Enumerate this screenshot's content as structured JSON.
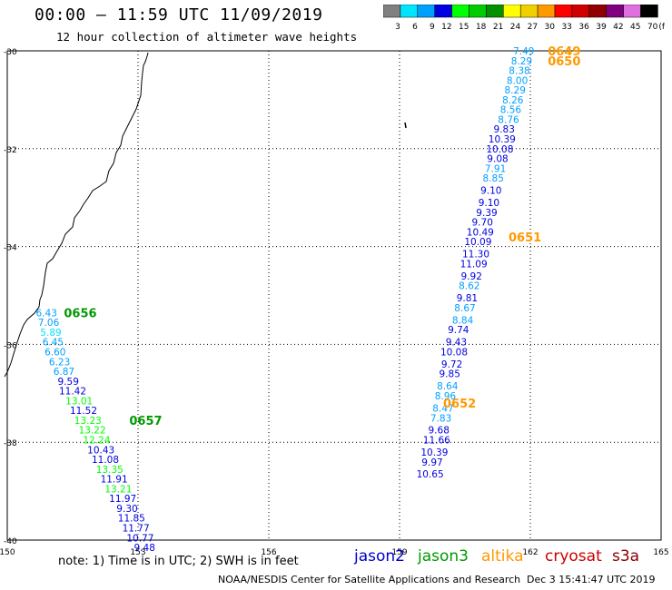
{
  "header": {
    "title": "00:00 – 11:59 UTC 11/09/2019",
    "subtitle": "12 hour collection of altimeter wave heights"
  },
  "legend": {
    "unit": "(ft)",
    "bins": [
      {
        "label": "3",
        "color": "#808080"
      },
      {
        "label": "6",
        "color": "#00e5ff"
      },
      {
        "label": "9",
        "color": "#00a0ff"
      },
      {
        "label": "12",
        "color": "#0000e0"
      },
      {
        "label": "15",
        "color": "#00ff00"
      },
      {
        "label": "18",
        "color": "#00cc00"
      },
      {
        "label": "21",
        "color": "#009000"
      },
      {
        "label": "24",
        "color": "#ffff00"
      },
      {
        "label": "27",
        "color": "#f0d000"
      },
      {
        "label": "30",
        "color": "#ff9900"
      },
      {
        "label": "33",
        "color": "#ff0000"
      },
      {
        "label": "36",
        "color": "#d00000"
      },
      {
        "label": "39",
        "color": "#900000"
      },
      {
        "label": "42",
        "color": "#800080"
      },
      {
        "label": "45",
        "color": "#e070e0"
      },
      {
        "label": "70",
        "color": "#000000"
      }
    ]
  },
  "axes": {
    "lat_labels": [
      "-30",
      "-32",
      "-34",
      "-36",
      "-38",
      "-40"
    ],
    "lon_labels": [
      "150",
      "153",
      "156",
      "159",
      "162",
      "165"
    ]
  },
  "tracks": [
    {
      "satellite": "jason3",
      "times": [
        {
          "label": "0656",
          "lon": 151.3,
          "lat": -35.35
        },
        {
          "label": "0657",
          "lon": 152.8,
          "lat": -37.55
        }
      ],
      "points": [
        {
          "v": "6.43",
          "lon": 150.9,
          "lat": -35.35
        },
        {
          "v": "7.06",
          "lon": 150.95,
          "lat": -35.55
        },
        {
          "v": "5.89",
          "lon": 151.0,
          "lat": -35.75
        },
        {
          "v": "6.45",
          "lon": 151.05,
          "lat": -35.95
        },
        {
          "v": "6.60",
          "lon": 151.1,
          "lat": -36.15
        },
        {
          "v": "6.23",
          "lon": 151.2,
          "lat": -36.35
        },
        {
          "v": "6.87",
          "lon": 151.3,
          "lat": -36.55
        },
        {
          "v": "9.59",
          "lon": 151.4,
          "lat": -36.75
        },
        {
          "v": "11.42",
          "lon": 151.5,
          "lat": -36.95
        },
        {
          "v": "13.01",
          "lon": 151.65,
          "lat": -37.15
        },
        {
          "v": "11.52",
          "lon": 151.75,
          "lat": -37.35
        },
        {
          "v": "13.23",
          "lon": 151.85,
          "lat": -37.55
        },
        {
          "v": "13.22",
          "lon": 151.95,
          "lat": -37.75
        },
        {
          "v": "12.24",
          "lon": 152.05,
          "lat": -37.95
        },
        {
          "v": "10.43",
          "lon": 152.15,
          "lat": -38.15
        },
        {
          "v": "11.08",
          "lon": 152.25,
          "lat": -38.35
        },
        {
          "v": "13.35",
          "lon": 152.35,
          "lat": -38.55
        },
        {
          "v": "11.91",
          "lon": 152.45,
          "lat": -38.75
        },
        {
          "v": "13.21",
          "lon": 152.55,
          "lat": -38.95
        },
        {
          "v": "11.97",
          "lon": 152.65,
          "lat": -39.15
        },
        {
          "v": "9.30",
          "lon": 152.75,
          "lat": -39.35
        },
        {
          "v": "11.85",
          "lon": 152.85,
          "lat": -39.55
        },
        {
          "v": "11.77",
          "lon": 152.95,
          "lat": -39.75
        },
        {
          "v": "10.77",
          "lon": 153.05,
          "lat": -39.95
        },
        {
          "v": "9.48",
          "lon": 153.15,
          "lat": -40.15
        }
      ]
    },
    {
      "satellite": "altika",
      "times": [
        {
          "label": "0649",
          "lon": 162.4,
          "lat": -30.0
        },
        {
          "label": "0650",
          "lon": 162.4,
          "lat": -30.2
        },
        {
          "label": "0651",
          "lon": 161.5,
          "lat": -33.8
        },
        {
          "label": "0652",
          "lon": 160.0,
          "lat": -37.2
        }
      ],
      "points": [
        {
          "v": "7.49",
          "lon": 161.85,
          "lat": -30.0
        },
        {
          "v": "8.29",
          "lon": 161.8,
          "lat": -30.2
        },
        {
          "v": "8.38",
          "lon": 161.75,
          "lat": -30.4
        },
        {
          "v": "8.00",
          "lon": 161.7,
          "lat": -30.6
        },
        {
          "v": "8.29",
          "lon": 161.65,
          "lat": -30.8
        },
        {
          "v": "8.26",
          "lon": 161.6,
          "lat": -31.0
        },
        {
          "v": "8.56",
          "lon": 161.55,
          "lat": -31.2
        },
        {
          "v": "8.76",
          "lon": 161.5,
          "lat": -31.4
        },
        {
          "v": "9.83",
          "lon": 161.4,
          "lat": -31.6
        },
        {
          "v": "10.39",
          "lon": 161.35,
          "lat": -31.8
        },
        {
          "v": "10.08",
          "lon": 161.3,
          "lat": -32.0
        },
        {
          "v": "9.08",
          "lon": 161.25,
          "lat": -32.2
        },
        {
          "v": "7.91",
          "lon": 161.2,
          "lat": -32.4
        },
        {
          "v": "8.85",
          "lon": 161.15,
          "lat": -32.6
        },
        {
          "v": "9.10",
          "lon": 161.1,
          "lat": -32.85
        },
        {
          "v": "9.10",
          "lon": 161.05,
          "lat": -33.1
        },
        {
          "v": "9.39",
          "lon": 161.0,
          "lat": -33.3
        },
        {
          "v": "9.70",
          "lon": 160.9,
          "lat": -33.5
        },
        {
          "v": "10.49",
          "lon": 160.85,
          "lat": -33.7
        },
        {
          "v": "10.09",
          "lon": 160.8,
          "lat": -33.9
        },
        {
          "v": "11.30",
          "lon": 160.75,
          "lat": -34.15
        },
        {
          "v": "11.09",
          "lon": 160.7,
          "lat": -34.35
        },
        {
          "v": "9.92",
          "lon": 160.65,
          "lat": -34.6
        },
        {
          "v": "8.62",
          "lon": 160.6,
          "lat": -34.8
        },
        {
          "v": "9.81",
          "lon": 160.55,
          "lat": -35.05
        },
        {
          "v": "8.67",
          "lon": 160.5,
          "lat": -35.25
        },
        {
          "v": "8.84",
          "lon": 160.45,
          "lat": -35.5
        },
        {
          "v": "9.74",
          "lon": 160.35,
          "lat": -35.7
        },
        {
          "v": "9.43",
          "lon": 160.3,
          "lat": -35.95
        },
        {
          "v": "10.08",
          "lon": 160.25,
          "lat": -36.15
        },
        {
          "v": "9.72",
          "lon": 160.2,
          "lat": -36.4
        },
        {
          "v": "9.85",
          "lon": 160.15,
          "lat": -36.6
        },
        {
          "v": "8.64",
          "lon": 160.1,
          "lat": -36.85
        },
        {
          "v": "8.96",
          "lon": 160.05,
          "lat": -37.05
        },
        {
          "v": "8.47",
          "lon": 160.0,
          "lat": -37.3
        },
        {
          "v": "7.83",
          "lon": 159.95,
          "lat": -37.5
        },
        {
          "v": "9.68",
          "lon": 159.9,
          "lat": -37.75
        },
        {
          "v": "11.66",
          "lon": 159.85,
          "lat": -37.95
        },
        {
          "v": "10.39",
          "lon": 159.8,
          "lat": -38.2
        },
        {
          "v": "9.97",
          "lon": 159.75,
          "lat": -38.4
        },
        {
          "v": "10.65",
          "lon": 159.7,
          "lat": -38.65
        }
      ]
    }
  ],
  "satellites": [
    {
      "name": "jason2",
      "color": "#0000cc"
    },
    {
      "name": "jason3",
      "color": "#009900"
    },
    {
      "name": "altika",
      "color": "#ff9900"
    },
    {
      "name": "cryosat",
      "color": "#cc0000"
    },
    {
      "name": "s3a",
      "color": "#880000"
    }
  ],
  "footer": {
    "note": "note: 1) Time is in UTC; 2) SWH is in feet",
    "credit": "NOAA/NESDIS Center for Satellite Applications and Research",
    "timestamp": "Dec 3 15:41:47 UTC 2019"
  }
}
